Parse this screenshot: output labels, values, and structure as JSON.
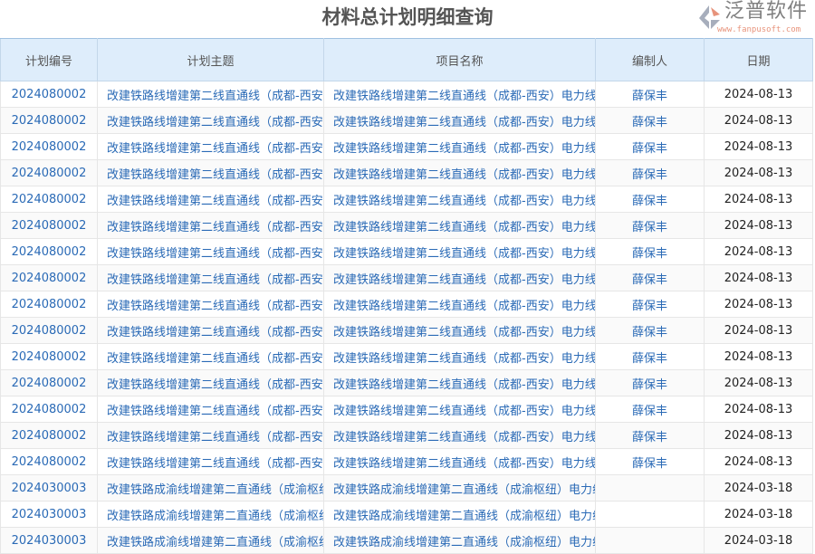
{
  "page_title": "材料总计划明细查询",
  "columns": [
    "计划编号",
    "计划主题",
    "项目名称",
    "编制人",
    "日期"
  ],
  "rows": [
    [
      "2024080002",
      "改建铁路线增建第二线直通线（成都-西安",
      "改建铁路线增建第二线直通线（成都-西安）电力线",
      "薛保丰",
      "2024-08-13"
    ],
    [
      "2024080002",
      "改建铁路线增建第二线直通线（成都-西安",
      "改建铁路线增建第二线直通线（成都-西安）电力线",
      "薛保丰",
      "2024-08-13"
    ],
    [
      "2024080002",
      "改建铁路线增建第二线直通线（成都-西安",
      "改建铁路线增建第二线直通线（成都-西安）电力线",
      "薛保丰",
      "2024-08-13"
    ],
    [
      "2024080002",
      "改建铁路线增建第二线直通线（成都-西安",
      "改建铁路线增建第二线直通线（成都-西安）电力线",
      "薛保丰",
      "2024-08-13"
    ],
    [
      "2024080002",
      "改建铁路线增建第二线直通线（成都-西安",
      "改建铁路线增建第二线直通线（成都-西安）电力线",
      "薛保丰",
      "2024-08-13"
    ],
    [
      "2024080002",
      "改建铁路线增建第二线直通线（成都-西安",
      "改建铁路线增建第二线直通线（成都-西安）电力线",
      "薛保丰",
      "2024-08-13"
    ],
    [
      "2024080002",
      "改建铁路线增建第二线直通线（成都-西安",
      "改建铁路线增建第二线直通线（成都-西安）电力线",
      "薛保丰",
      "2024-08-13"
    ],
    [
      "2024080002",
      "改建铁路线增建第二线直通线（成都-西安",
      "改建铁路线增建第二线直通线（成都-西安）电力线",
      "薛保丰",
      "2024-08-13"
    ],
    [
      "2024080002",
      "改建铁路线增建第二线直通线（成都-西安",
      "改建铁路线增建第二线直通线（成都-西安）电力线",
      "薛保丰",
      "2024-08-13"
    ],
    [
      "2024080002",
      "改建铁路线增建第二线直通线（成都-西安",
      "改建铁路线增建第二线直通线（成都-西安）电力线",
      "薛保丰",
      "2024-08-13"
    ],
    [
      "2024080002",
      "改建铁路线增建第二线直通线（成都-西安",
      "改建铁路线增建第二线直通线（成都-西安）电力线",
      "薛保丰",
      "2024-08-13"
    ],
    [
      "2024080002",
      "改建铁路线增建第二线直通线（成都-西安",
      "改建铁路线增建第二线直通线（成都-西安）电力线",
      "薛保丰",
      "2024-08-13"
    ],
    [
      "2024080002",
      "改建铁路线增建第二线直通线（成都-西安",
      "改建铁路线增建第二线直通线（成都-西安）电力线",
      "薛保丰",
      "2024-08-13"
    ],
    [
      "2024080002",
      "改建铁路线增建第二线直通线（成都-西安",
      "改建铁路线增建第二线直通线（成都-西安）电力线",
      "薛保丰",
      "2024-08-13"
    ],
    [
      "2024080002",
      "改建铁路线增建第二线直通线（成都-西安",
      "改建铁路线增建第二线直通线（成都-西安）电力线",
      "薛保丰",
      "2024-08-13"
    ],
    [
      "2024030003",
      "改建铁路成渝线增建第二直通线（成渝枢纽",
      "改建铁路成渝线增建第二直通线（成渝枢纽）电力线",
      "",
      "2024-03-18"
    ],
    [
      "2024030003",
      "改建铁路成渝线增建第二直通线（成渝枢纽",
      "改建铁路成渝线增建第二直通线（成渝枢纽）电力线",
      "",
      "2024-03-18"
    ],
    [
      "2024030003",
      "改建铁路成渝线增建第二直通线（成渝枢纽",
      "改建铁路成渝线增建第二直通线（成渝枢纽）电力线",
      "",
      "2024-03-18"
    ]
  ],
  "watermark": {
    "text": "泛普软件",
    "url": "www.fanpusoft.com"
  },
  "colors": {
    "header_bg": "#deedfb",
    "link": "#2a6ab6"
  }
}
